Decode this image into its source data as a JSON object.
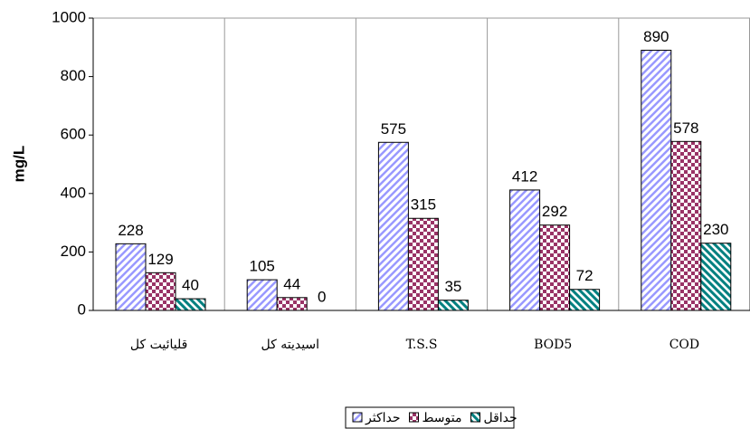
{
  "chart_data": {
    "type": "bar",
    "y_label": "mg/L",
    "categories": [
      "قلیائیت کل",
      "اسیدیته کل",
      "T.S.S",
      "BOD5",
      "COD"
    ],
    "series": [
      {
        "name": "حداکثر",
        "color": "#9999ff",
        "values": [
          228,
          105,
          575,
          412,
          890
        ]
      },
      {
        "name": "متوسط",
        "color": "#993366",
        "values": [
          129,
          44,
          315,
          292,
          578
        ]
      },
      {
        "name": "حداقل",
        "color": "#008080",
        "values": [
          40,
          0,
          35,
          72,
          230
        ]
      }
    ],
    "ylim": [
      0,
      1000
    ],
    "yticks": [
      0,
      200,
      400,
      600,
      800,
      1000
    ],
    "grid": false
  }
}
